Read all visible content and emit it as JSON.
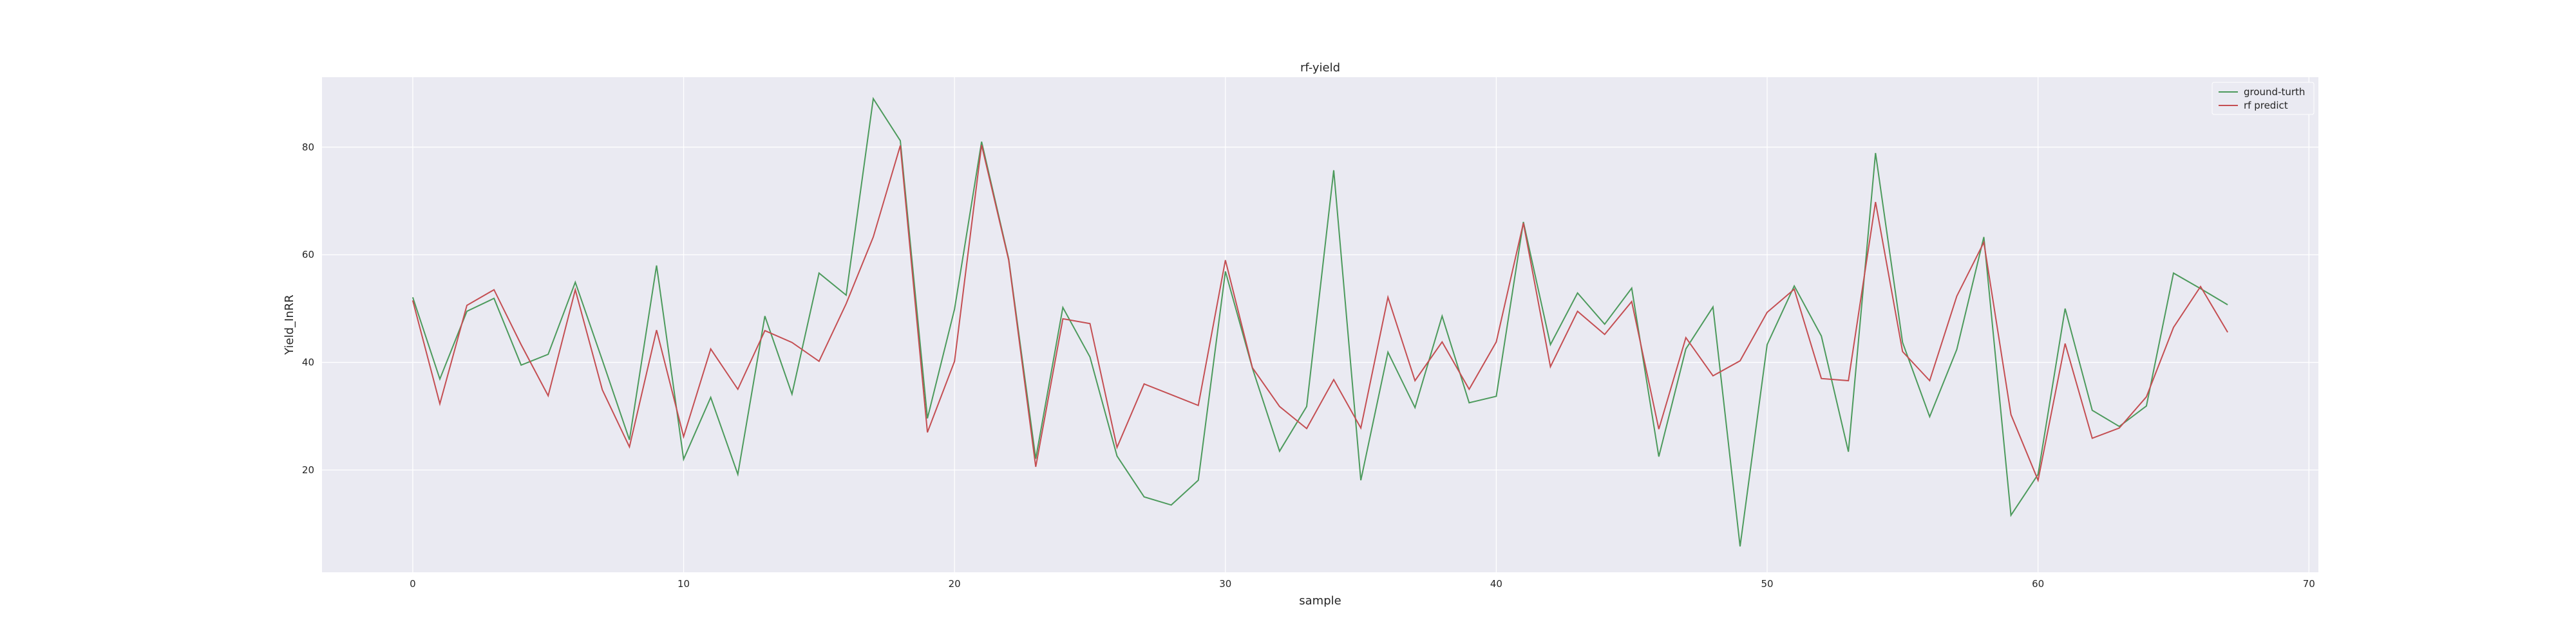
{
  "chart_data": {
    "type": "line",
    "title": "rf-yield",
    "xlabel": "sample",
    "ylabel": "Yield_InRR",
    "xlim": [
      -3.35,
      70.35
    ],
    "ylim": [
      1.0,
      93.0
    ],
    "xticks": [
      0,
      10,
      20,
      30,
      40,
      50,
      60,
      70
    ],
    "yticks": [
      20,
      40,
      60,
      80
    ],
    "grid": true,
    "legend_position": "top-right",
    "background": "#eaeaf2",
    "x": [
      0,
      1,
      2,
      3,
      4,
      5,
      6,
      7,
      8,
      9,
      10,
      11,
      12,
      13,
      14,
      15,
      16,
      17,
      18,
      19,
      20,
      21,
      22,
      23,
      24,
      25,
      26,
      27,
      28,
      29,
      30,
      31,
      32,
      33,
      34,
      35,
      36,
      37,
      38,
      39,
      40,
      41,
      42,
      43,
      44,
      45,
      46,
      47,
      48,
      49,
      50,
      51,
      52,
      53,
      54,
      55,
      56,
      57,
      58,
      59,
      60,
      61,
      62,
      63,
      64,
      65,
      66,
      67
    ],
    "series": [
      {
        "name": "ground-turth",
        "color": "#4c9a5c",
        "values": [
          52.1,
          36.9,
          49.5,
          51.9,
          39.5,
          41.5,
          54.9,
          40.4,
          25.6,
          58.0,
          22.0,
          33.5,
          19.2,
          48.6,
          34.1,
          56.6,
          52.5,
          89.0,
          81.2,
          29.6,
          49.9,
          81.0,
          59.2,
          22.1,
          50.2,
          41.0,
          22.6,
          15.0,
          13.5,
          18.1,
          56.9,
          38.9,
          23.5,
          31.8,
          75.7,
          18.1,
          41.9,
          31.6,
          48.6,
          32.5,
          33.7,
          66.1,
          43.3,
          52.9,
          47.1,
          53.8,
          22.5,
          42.5,
          50.3,
          5.8,
          43.3,
          54.2,
          44.9,
          23.4,
          78.9,
          43.7,
          29.9,
          42.4,
          63.3,
          11.6,
          19.2,
          50.0,
          31.1,
          28.1,
          31.9,
          56.6,
          53.7,
          50.7
        ]
      },
      {
        "name": "rf predict",
        "color": "#c44e52",
        "values": [
          51.5,
          32.3,
          50.6,
          53.5,
          43.3,
          33.8,
          53.5,
          34.9,
          24.3,
          46.0,
          26.2,
          42.5,
          35.0,
          45.9,
          43.7,
          40.2,
          50.9,
          63.3,
          80.3,
          27.0,
          40.2,
          80.4,
          59.0,
          20.6,
          48.1,
          47.2,
          24.2,
          36.0,
          34.0,
          32.0,
          59.0,
          39.0,
          31.8,
          27.7,
          36.8,
          27.8,
          52.1,
          36.6,
          43.8,
          35.0,
          43.8,
          65.9,
          39.2,
          49.5,
          45.2,
          51.3,
          27.6,
          44.6,
          37.5,
          40.3,
          49.3,
          53.6,
          37.0,
          36.6,
          69.8,
          42.0,
          36.6,
          52.3,
          62.3,
          30.3,
          18.1,
          43.5,
          25.9,
          27.8,
          33.6,
          46.5,
          54.1,
          45.6
        ]
      }
    ]
  }
}
